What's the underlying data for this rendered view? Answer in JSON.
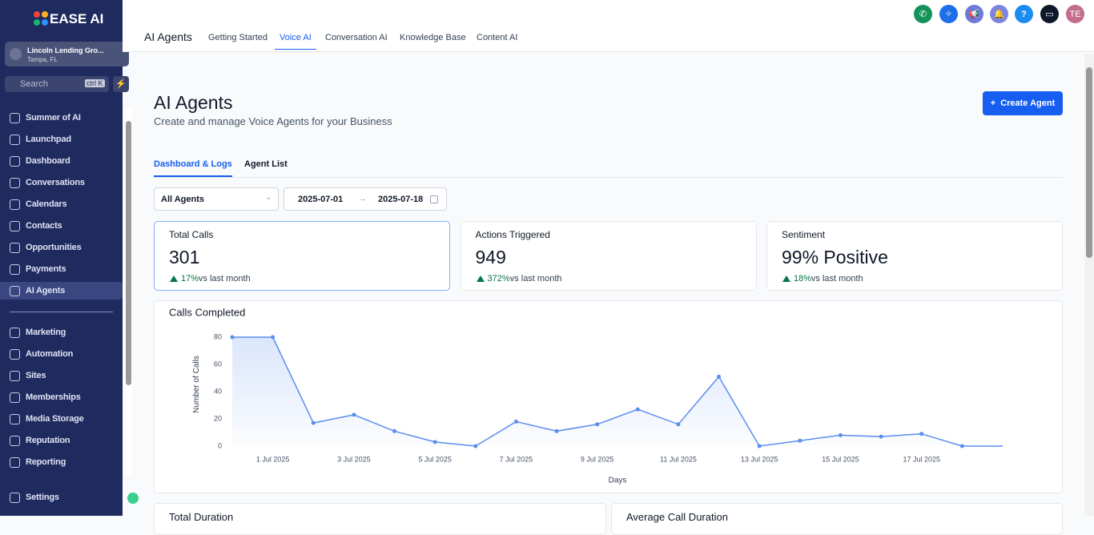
{
  "sidebar": {
    "logo": "EASE AI",
    "account": {
      "name": "Lincoln Lending Gro...",
      "location": "Tampa, FL"
    },
    "search": {
      "placeholder": "Search",
      "shortcut": "ctrl K"
    },
    "items": [
      "Summer of AI",
      "Launchpad",
      "Dashboard",
      "Conversations",
      "Calendars",
      "Contacts",
      "Opportunities",
      "Payments",
      "AI Agents"
    ],
    "items2": [
      "Marketing",
      "Automation",
      "Sites",
      "Memberships",
      "Media Storage",
      "Reputation",
      "Reporting"
    ],
    "settings": "Settings"
  },
  "topbar": {
    "title": "AI Agents",
    "tabs": [
      "Getting Started",
      "Voice AI",
      "Conversation AI",
      "Knowledge Base",
      "Content AI"
    ],
    "avatar": "TE"
  },
  "header": {
    "title": "AI Agents",
    "subtitle": "Create and manage Voice Agents for your Business",
    "button": "Create Agent"
  },
  "subtabs": [
    "Dashboard & Logs",
    "Agent List"
  ],
  "filters": {
    "agent": "All Agents",
    "start": "2025-07-01",
    "end": "2025-07-18"
  },
  "cards": [
    {
      "title": "Total Calls",
      "value": "301",
      "change": "17%",
      "note": "vs last month"
    },
    {
      "title": "Actions Triggered",
      "value": "949",
      "change": "372%",
      "note": "vs last month"
    },
    {
      "title": "Sentiment",
      "value": "99% Positive",
      "change": "18%",
      "note": "vs last month"
    }
  ],
  "bottom_cards": [
    "Total Duration",
    "Average Call Duration"
  ],
  "chart_data": {
    "type": "line",
    "title": "Calls Completed",
    "x_label": "Days",
    "y_label": "Number of Calls",
    "color": "#5b8def",
    "categories": [
      null,
      "1 Jul 2025",
      null,
      "3 Jul 2025",
      null,
      "5 Jul 2025",
      null,
      "7 Jul 2025",
      null,
      "9 Jul 2025",
      null,
      "11 Jul 2025",
      null,
      "13 Jul 2025",
      null,
      "15 Jul 2025",
      null,
      "17 Jul 2025",
      null,
      null
    ],
    "values": [
      80,
      80,
      17,
      23,
      11,
      3,
      0,
      18,
      11,
      16,
      27,
      16,
      51,
      0,
      4,
      8,
      7,
      9,
      0,
      0
    ],
    "ylim": [
      0,
      80
    ],
    "yticks": [
      0,
      20,
      40,
      60,
      80
    ]
  }
}
